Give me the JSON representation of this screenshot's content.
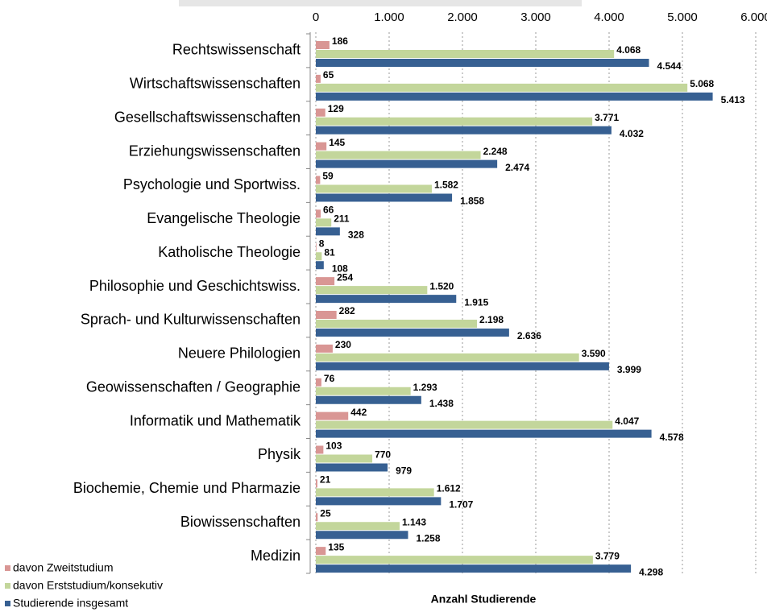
{
  "chart_data": {
    "type": "bar",
    "orientation": "horizontal",
    "x_label": "Anzahl Studierende",
    "categories": [
      "Rechtswissenschaft",
      "Wirtschaftswissenschaften",
      "Gesellschaftswissenschaften",
      "Erziehungswissenschaften",
      "Psychologie und Sportwiss.",
      "Evangelische Theologie",
      "Katholische Theologie",
      "Philosophie und Geschichtswiss.",
      "Sprach- und Kulturwissenschaften",
      "Neuere Philologien",
      "Geowissenschaften / Geographie",
      "Informatik und Mathematik",
      "Physik",
      "Biochemie, Chemie und Pharmazie",
      "Biowissenschaften",
      "Medizin"
    ],
    "series": [
      {
        "name": "davon Zweitstudium",
        "color": "#d99694",
        "values": [
          186,
          65,
          129,
          145,
          59,
          66,
          8,
          254,
          282,
          230,
          76,
          442,
          103,
          21,
          25,
          135
        ]
      },
      {
        "name": "davon Erststudium/konsekutiv",
        "color": "#c3d69b",
        "values": [
          4068,
          5068,
          3771,
          2248,
          1582,
          211,
          81,
          1520,
          2198,
          3590,
          1293,
          4047,
          770,
          1612,
          1143,
          3779
        ],
        "value_labels": [
          "4.068",
          "5.068",
          "3.771",
          "2.248",
          "1.582",
          "211",
          "81",
          "1.520",
          "2.198",
          "3.590",
          "1.293",
          "4.047",
          "770",
          "1.612",
          "1.143",
          "3.779"
        ]
      },
      {
        "name": "Studierende insgesamt",
        "color": "#376092",
        "values": [
          4544,
          5413,
          4032,
          2474,
          1858,
          328,
          108,
          1915,
          2636,
          3999,
          1438,
          4578,
          979,
          1707,
          1258,
          4298
        ],
        "value_labels": [
          "4.544",
          "5.413",
          "4.032",
          "2.474",
          "1.858",
          "328",
          "108",
          "1.915",
          "2.636",
          "3.999",
          "1.438",
          "4.578",
          "979",
          "1.707",
          "1.258",
          "4.298"
        ]
      }
    ],
    "xlim": [
      0,
      6000
    ],
    "xticks": [
      0,
      {
        "value": 1000,
        "label": "1.000"
      },
      {
        "value": 2000,
        "label": "2.000"
      },
      {
        "value": 3000,
        "label": "3.000"
      },
      {
        "value": 4000,
        "label": "4.000"
      },
      {
        "value": 5000,
        "label": "5.000"
      },
      {
        "value": 6000,
        "label": "6.000"
      }
    ],
    "grid": true,
    "legend": "bottom-left"
  }
}
